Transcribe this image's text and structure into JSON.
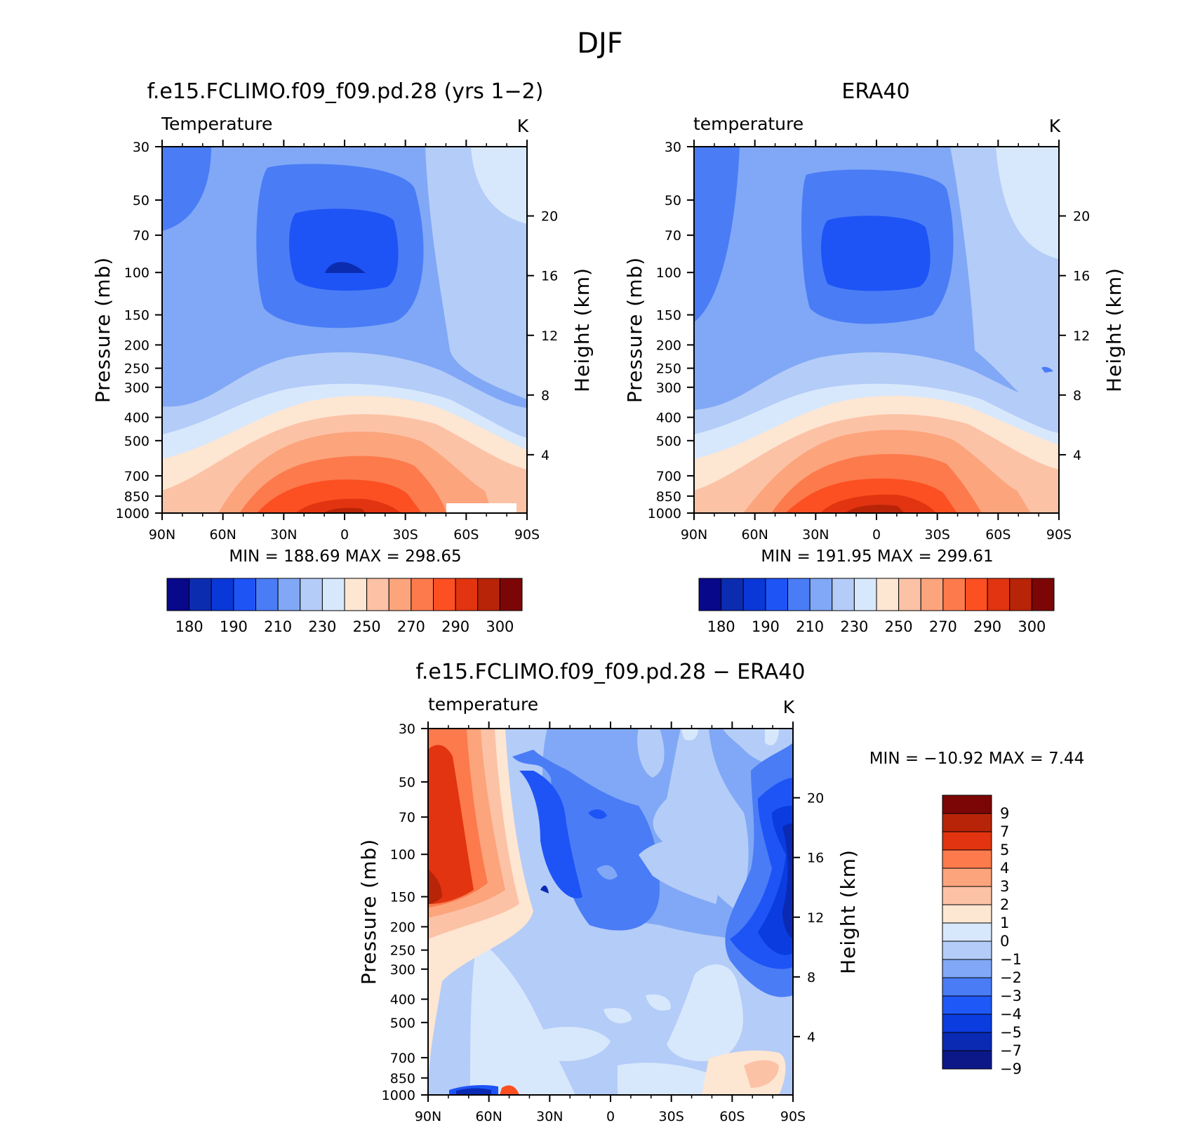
{
  "main_title": "DJF",
  "colors": {
    "temp_palette": [
      "#08088a",
      "#0c2cb0",
      "#0a38d8",
      "#1e54f6",
      "#4a7cf6",
      "#80a8f6",
      "#b4ccf8",
      "#d8e8fc",
      "#fde6d2",
      "#fcc2a6",
      "#fca47c",
      "#fc7a4c",
      "#fc5022",
      "#e23410",
      "#b82408",
      "#7c0606"
    ],
    "diff_palette": [
      "#0c1888",
      "#0a2ab4",
      "#0a3ce0",
      "#1e58f6",
      "#4a7cf6",
      "#80a8f6",
      "#b4ccf8",
      "#d8e8fc",
      "#fde6d2",
      "#fcc2a6",
      "#fca47c",
      "#fc7a4c",
      "#e23410",
      "#b82408",
      "#7c0606"
    ]
  },
  "panels": [
    {
      "title": "f.e15.FCLIMO.f09_f09.pd.28 (yrs 1−2)",
      "variable": "Temperature",
      "units": "K",
      "min_text": "MIN =  188.69   MAX =  298.65"
    },
    {
      "title": "ERA40",
      "variable": "temperature",
      "units": "K",
      "min_text": "MIN =  191.95   MAX =  299.61"
    },
    {
      "title": "f.e15.FCLIMO.f09_f09.pd.28 − ERA40",
      "variable": "temperature",
      "units": "K",
      "min_text": "MIN = −10.92   MAX =    7.44"
    }
  ],
  "axes": {
    "ylabel_left": "Pressure (mb)",
    "ylabel_right": "Height (km)",
    "pressure_ticks": [
      "30",
      "50",
      "70",
      "100",
      "150",
      "200",
      "250",
      "300",
      "400",
      "500",
      "700",
      "850",
      "1000"
    ],
    "height_ticks": [
      "20",
      "16",
      "12",
      "8",
      "4"
    ],
    "lat_ticks": [
      "90N",
      "60N",
      "30N",
      "0",
      "30S",
      "60S",
      "90S"
    ]
  },
  "colorbars": {
    "temp_labels": [
      "180",
      "190",
      "210",
      "230",
      "250",
      "270",
      "290",
      "300"
    ],
    "diff_labels": [
      "9",
      "7",
      "5",
      "4",
      "3",
      "2",
      "1",
      "0",
      "−1",
      "−2",
      "−3",
      "−4",
      "−5",
      "−7",
      "−9"
    ]
  },
  "chart_data": [
    {
      "type": "heatmap",
      "title": "f.e15.FCLIMO.f09_f09.pd.28 (yrs 1−2)",
      "subtitle": "Temperature",
      "units": "K",
      "x_ticks": [
        "90N",
        "60N",
        "30N",
        "0",
        "30S",
        "60S",
        "90S"
      ],
      "xlim": [
        90,
        -90
      ],
      "ylabel": "Pressure (mb)",
      "ylim": [
        30,
        1000
      ],
      "y_scale": "log",
      "y2label": "Height (km)",
      "contour_levels": [
        180,
        185,
        190,
        200,
        210,
        220,
        230,
        240,
        250,
        260,
        270,
        280,
        290,
        295,
        300
      ],
      "min": 188.69,
      "max": 298.65
    },
    {
      "type": "heatmap",
      "title": "ERA40",
      "subtitle": "temperature",
      "units": "K",
      "x_ticks": [
        "90N",
        "60N",
        "30N",
        "0",
        "30S",
        "60S",
        "90S"
      ],
      "xlim": [
        90,
        -90
      ],
      "ylabel": "Pressure (mb)",
      "ylim": [
        30,
        1000
      ],
      "y_scale": "log",
      "y2label": "Height (km)",
      "contour_levels": [
        180,
        185,
        190,
        200,
        210,
        220,
        230,
        240,
        250,
        260,
        270,
        280,
        290,
        295,
        300
      ],
      "min": 191.95,
      "max": 299.61
    },
    {
      "type": "heatmap",
      "title": "f.e15.FCLIMO.f09_f09.pd.28 − ERA40",
      "subtitle": "temperature",
      "units": "K",
      "x_ticks": [
        "90N",
        "60N",
        "30N",
        "0",
        "30S",
        "60S",
        "90S"
      ],
      "xlim": [
        90,
        -90
      ],
      "ylabel": "Pressure (mb)",
      "ylim": [
        30,
        1000
      ],
      "y_scale": "log",
      "y2label": "Height (km)",
      "contour_levels": [
        -9,
        -7,
        -5,
        -4,
        -3,
        -2,
        -1,
        0,
        1,
        2,
        3,
        4,
        5,
        7,
        9
      ],
      "min": -10.92,
      "max": 7.44
    }
  ]
}
